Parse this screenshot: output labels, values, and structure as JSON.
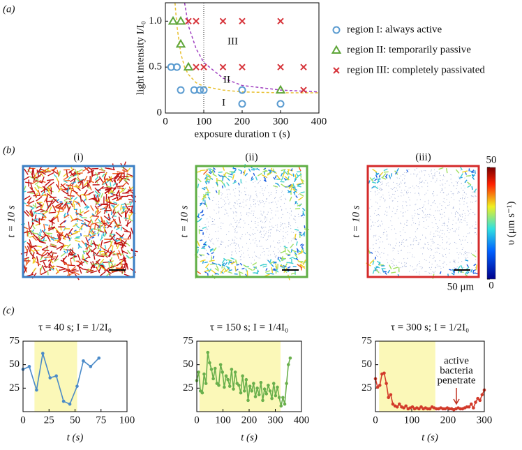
{
  "panel_labels": [
    "(a)",
    "(b)",
    "(c)"
  ],
  "chart_data": [
    {
      "type": "scatter",
      "x_label": "exposure duration τ (s)",
      "y_label": "light intensity I/I₀",
      "xlim": [
        0,
        400
      ],
      "xticks": [
        0,
        100,
        200,
        300,
        400
      ],
      "ylim": [
        0,
        1.2
      ],
      "yticks": [
        0,
        0.5,
        {
          "value": 1,
          "label": "1.0"
        }
      ],
      "vline": 100,
      "annotations": [
        "I",
        "II",
        "III"
      ],
      "series": [
        {
          "name": "region I: always active",
          "color": "#5a9bd0",
          "marker": "circle",
          "x": [
            15,
            30,
            40,
            75,
            90,
            100,
            200,
            200,
            300
          ],
          "values": [
            0.5,
            0.5,
            0.25,
            0.25,
            0.25,
            0.25,
            0.25,
            0.1,
            0.1
          ]
        },
        {
          "name": "region II: temporarily passive",
          "color": "#5fa63a",
          "marker": "triangle",
          "x": [
            20,
            40,
            40,
            60,
            300
          ],
          "values": [
            1.0,
            1.0,
            0.75,
            0.5,
            0.25
          ]
        },
        {
          "name": "region III: completely passivated",
          "color": "#d6333a",
          "marker": "cross",
          "x": [
            60,
            80,
            150,
            200,
            300,
            80,
            100,
            150,
            200,
            300,
            360,
            360
          ],
          "values": [
            1.0,
            1.0,
            1.0,
            1.0,
            1.0,
            0.5,
            0.5,
            0.5,
            0.5,
            0.5,
            0.5,
            0.25
          ]
        }
      ],
      "curves": [
        {
          "color": "#e8c030",
          "x": [
            25,
            30,
            40,
            50,
            60,
            80,
            100,
            150,
            200,
            300,
            400
          ],
          "values": [
            1.2,
            0.95,
            0.65,
            0.5,
            0.42,
            0.33,
            0.29,
            0.25,
            0.23,
            0.22,
            0.22
          ]
        },
        {
          "color": "#a040c0",
          "x": [
            50,
            60,
            80,
            100,
            150,
            200,
            300,
            400
          ],
          "values": [
            1.2,
            0.95,
            0.7,
            0.55,
            0.38,
            0.3,
            0.25,
            0.23
          ]
        }
      ]
    },
    {
      "type": "line",
      "title": "τ = 40 s; I = 1/2I₀",
      "x_label": "t (s)",
      "color": "#4a8ac8",
      "xlim": [
        0,
        100
      ],
      "xticks": [
        0,
        25,
        50,
        75,
        100
      ],
      "ylim": [
        0,
        75
      ],
      "yticks": [
        25,
        50,
        75
      ],
      "shaded_x": [
        11,
        52
      ],
      "x": [
        0,
        6,
        13,
        19,
        26,
        32,
        39,
        45,
        52,
        58,
        65,
        73
      ],
      "values": [
        45,
        48,
        23,
        62,
        36,
        38,
        11,
        8,
        27,
        54,
        48,
        57
      ]
    },
    {
      "type": "line",
      "title": "τ = 150 s; I = 1/4I₀",
      "x_label": "t (s)",
      "color": "#6ab04c",
      "xlim": [
        0,
        400
      ],
      "xticks": [
        0,
        100,
        200,
        300,
        400
      ],
      "ylim": [
        0,
        75
      ],
      "yticks": [
        25,
        50,
        75
      ],
      "shaded_x": [
        10,
        320
      ],
      "x": [
        0,
        7,
        14,
        21,
        28,
        35,
        42,
        49,
        56,
        63,
        70,
        77,
        84,
        91,
        98,
        105,
        112,
        119,
        126,
        133,
        140,
        147,
        154,
        161,
        168,
        175,
        182,
        189,
        196,
        203,
        210,
        217,
        224,
        231,
        238,
        245,
        252,
        259,
        266,
        273,
        280,
        287,
        294,
        301,
        308,
        315,
        322,
        329,
        336,
        343,
        350,
        357
      ],
      "values": [
        33,
        42,
        22,
        20,
        40,
        30,
        63,
        52,
        45,
        35,
        46,
        30,
        28,
        50,
        42,
        26,
        38,
        34,
        27,
        45,
        24,
        42,
        30,
        28,
        20,
        38,
        22,
        34,
        12,
        27,
        22,
        30,
        16,
        25,
        18,
        31,
        12,
        24,
        19,
        28,
        22,
        14,
        30,
        17,
        26,
        15,
        6,
        15,
        8,
        30,
        50,
        57
      ]
    },
    {
      "type": "line",
      "title": "τ = 300 s; I = 1/2I₀",
      "x_label": "t (s)",
      "color": "#d23a2a",
      "xlim": [
        0,
        300
      ],
      "xticks": [
        0,
        100,
        200,
        300
      ],
      "ylim": [
        0,
        75
      ],
      "yticks": [
        25,
        50,
        75
      ],
      "shaded_x": [
        10,
        165
      ],
      "annotation": [
        "active",
        "bacteria",
        "penetrate"
      ],
      "x": [
        0,
        6,
        12,
        18,
        24,
        30,
        36,
        42,
        48,
        54,
        60,
        66,
        72,
        78,
        84,
        90,
        96,
        102,
        108,
        114,
        120,
        126,
        132,
        138,
        144,
        150,
        156,
        162,
        168,
        174,
        180,
        186,
        192,
        198,
        204,
        210,
        216,
        222,
        228,
        234,
        240,
        246,
        252,
        258,
        264,
        270,
        276,
        282,
        288,
        294,
        300
      ],
      "values": [
        35,
        26,
        28,
        40,
        41,
        30,
        15,
        18,
        8,
        6,
        5,
        8,
        5,
        4,
        6,
        3,
        4,
        5,
        3,
        4,
        3,
        5,
        3,
        4,
        3,
        3,
        5,
        4,
        3,
        3,
        4,
        3,
        3,
        4,
        3,
        3,
        2,
        3,
        4,
        3,
        3,
        4,
        5,
        5,
        8,
        4,
        10,
        14,
        12,
        18,
        23
      ]
    }
  ],
  "heatmaps": {
    "titles": [
      "(i)",
      "(ii)",
      "(iii)"
    ],
    "row_label": "t = 10 s",
    "scale_bar": "50 μm",
    "colorbar": {
      "label": "υ (μm s⁻¹)",
      "lim": [
        0,
        50
      ],
      "ticks": [
        0,
        50
      ]
    }
  }
}
